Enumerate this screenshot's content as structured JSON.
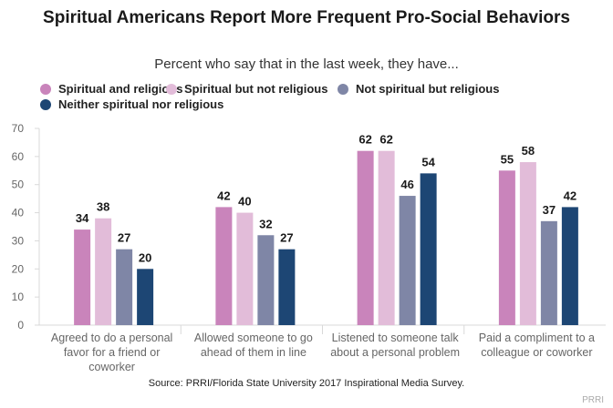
{
  "chart_data": {
    "type": "bar",
    "title": "Spiritual Americans Report More Frequent Pro-Social Behaviors",
    "subtitle": "Percent who say that in the last week, they have...",
    "xlabel": "",
    "ylabel": "",
    "ylim": [
      0,
      70
    ],
    "yticks": [
      0,
      10,
      20,
      30,
      40,
      50,
      60,
      70
    ],
    "grid": false,
    "legend_position": "top",
    "categories": [
      [
        "Agreed to do a personal",
        "favor for a friend or",
        "coworker"
      ],
      [
        "Allowed someone to go",
        "ahead of them in line"
      ],
      [
        "Listened to someone talk",
        "about a personal problem"
      ],
      [
        "Paid a compliment to a",
        "colleague or coworker"
      ]
    ],
    "series": [
      {
        "name": "Spiritual and religious",
        "color": "#c984bb",
        "values": [
          34,
          42,
          62,
          55
        ]
      },
      {
        "name": "Spiritual but not religious",
        "color": "#e2bcd9",
        "values": [
          38,
          40,
          62,
          58
        ]
      },
      {
        "name": "Not spiritual but religious",
        "color": "#7f86a6",
        "values": [
          27,
          32,
          46,
          37
        ]
      },
      {
        "name": "Neither spiritual nor religious",
        "color": "#1d4674",
        "values": [
          20,
          27,
          54,
          42
        ]
      }
    ],
    "source": "Source: PRRI/Florida State University 2017 Inspirational Media Survey.",
    "brand": "PRRI"
  }
}
